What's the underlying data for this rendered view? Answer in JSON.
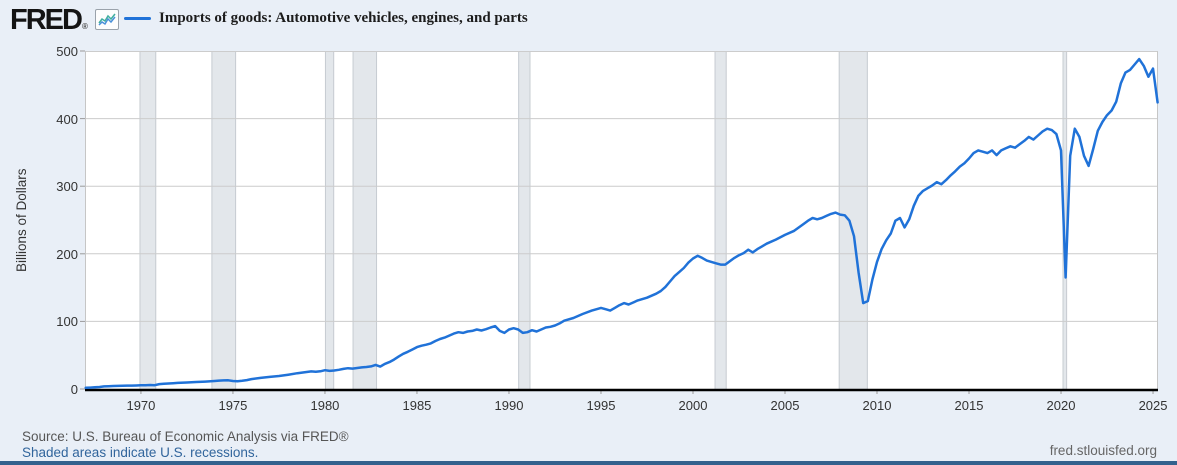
{
  "header": {
    "logo": "FRED",
    "registered_mark": "®",
    "legend_label": "Imports of goods: Automotive vehicles, engines, and parts"
  },
  "footer": {
    "source_line": "Source: U.S. Bureau of Economic Analysis via FRED®",
    "recession_note": "Shaded areas indicate U.S. recessions.",
    "site_url": "fred.stlouisfed.org"
  },
  "icons": {
    "fred_chart_icon": "sparkline-in-box"
  },
  "colors": {
    "page_bg": "#e9eff7",
    "plot_bg": "#ffffff",
    "line": "#2072d8",
    "gridline": "#cccccc",
    "plot_border": "#c6c6c6",
    "recession_fill": "#e3e7eb",
    "recession_edge": "#c7ccd2",
    "axis": "#000000",
    "link": "#31659c",
    "bottom_bar": "#33618d",
    "icon_line_teal": "#3fae9f",
    "icon_line_blue": "#4a90d9"
  },
  "chart_data": {
    "type": "line",
    "title": "Imports of goods: Automotive vehicles, engines, and parts",
    "xlabel": "",
    "ylabel": "Billions of Dollars",
    "grid": "horizontal",
    "legend_position": "top-left",
    "x_axis": {
      "min": 1966.96,
      "max": 2025.27,
      "ticks": [
        1970,
        1975,
        1980,
        1985,
        1990,
        1995,
        2000,
        2005,
        2010,
        2015,
        2020,
        2025
      ]
    },
    "y_axis": {
      "min": 0,
      "max": 500,
      "ticks": [
        0,
        100,
        200,
        300,
        400,
        500
      ]
    },
    "recessions": [
      [
        1969.92,
        1970.83
      ],
      [
        1973.83,
        1975.17
      ],
      [
        1980.0,
        1980.5
      ],
      [
        1981.5,
        1982.83
      ],
      [
        1990.5,
        1991.17
      ],
      [
        2001.17,
        2001.83
      ],
      [
        2007.92,
        2009.5
      ],
      [
        2020.08,
        2020.33
      ]
    ],
    "series": [
      {
        "name": "Imports of goods: Automotive vehicles, engines, and parts",
        "units": "Billions of Dollars",
        "points": [
          [
            1967.0,
            1.8
          ],
          [
            1967.25,
            2.1
          ],
          [
            1967.5,
            2.5
          ],
          [
            1967.75,
            3.0
          ],
          [
            1968.0,
            3.8
          ],
          [
            1968.25,
            4.2
          ],
          [
            1968.5,
            4.4
          ],
          [
            1968.75,
            4.6
          ],
          [
            1969.0,
            4.8
          ],
          [
            1969.25,
            5.0
          ],
          [
            1969.5,
            5.1
          ],
          [
            1969.75,
            5.2
          ],
          [
            1970.0,
            5.4
          ],
          [
            1970.25,
            5.6
          ],
          [
            1970.5,
            5.9
          ],
          [
            1970.75,
            5.6
          ],
          [
            1971.0,
            7.2
          ],
          [
            1971.25,
            7.8
          ],
          [
            1971.5,
            8.2
          ],
          [
            1971.75,
            8.6
          ],
          [
            1972.0,
            9.0
          ],
          [
            1972.5,
            9.6
          ],
          [
            1973.0,
            10.4
          ],
          [
            1973.5,
            11.0
          ],
          [
            1974.0,
            11.8
          ],
          [
            1974.25,
            12.5
          ],
          [
            1974.5,
            12.7
          ],
          [
            1974.75,
            12.9
          ],
          [
            1975.0,
            11.9
          ],
          [
            1975.25,
            11.5
          ],
          [
            1975.5,
            12.3
          ],
          [
            1975.75,
            13.2
          ],
          [
            1976.0,
            14.6
          ],
          [
            1976.5,
            16.4
          ],
          [
            1977.0,
            17.9
          ],
          [
            1977.5,
            19.3
          ],
          [
            1978.0,
            21.2
          ],
          [
            1978.5,
            23.3
          ],
          [
            1979.0,
            25.1
          ],
          [
            1979.25,
            26.0
          ],
          [
            1979.5,
            25.4
          ],
          [
            1979.75,
            26.2
          ],
          [
            1980.0,
            27.8
          ],
          [
            1980.25,
            26.8
          ],
          [
            1980.5,
            27.3
          ],
          [
            1980.75,
            28.4
          ],
          [
            1981.0,
            29.8
          ],
          [
            1981.25,
            30.7
          ],
          [
            1981.5,
            30.2
          ],
          [
            1981.75,
            31.0
          ],
          [
            1982.0,
            31.9
          ],
          [
            1982.25,
            32.6
          ],
          [
            1982.5,
            33.5
          ],
          [
            1982.75,
            35.6
          ],
          [
            1983.0,
            33.2
          ],
          [
            1983.25,
            37.2
          ],
          [
            1983.5,
            39.8
          ],
          [
            1983.75,
            43.5
          ],
          [
            1984.0,
            48
          ],
          [
            1984.25,
            52
          ],
          [
            1984.5,
            55
          ],
          [
            1984.75,
            58.5
          ],
          [
            1985.0,
            62
          ],
          [
            1985.25,
            64
          ],
          [
            1985.5,
            65.5
          ],
          [
            1985.75,
            67.5
          ],
          [
            1986.0,
            71
          ],
          [
            1986.25,
            74
          ],
          [
            1986.5,
            76
          ],
          [
            1986.75,
            79
          ],
          [
            1987.0,
            82
          ],
          [
            1987.25,
            84
          ],
          [
            1987.5,
            83
          ],
          [
            1987.75,
            85
          ],
          [
            1988.0,
            86
          ],
          [
            1988.25,
            88
          ],
          [
            1988.5,
            86.5
          ],
          [
            1988.75,
            88.5
          ],
          [
            1989.0,
            91
          ],
          [
            1989.25,
            93
          ],
          [
            1989.5,
            86
          ],
          [
            1989.75,
            83
          ],
          [
            1990.0,
            88
          ],
          [
            1990.25,
            90
          ],
          [
            1990.5,
            88
          ],
          [
            1990.75,
            83
          ],
          [
            1991.0,
            84
          ],
          [
            1991.25,
            87
          ],
          [
            1991.5,
            85
          ],
          [
            1991.75,
            88
          ],
          [
            1992.0,
            91
          ],
          [
            1992.25,
            92
          ],
          [
            1992.5,
            94
          ],
          [
            1992.75,
            97
          ],
          [
            1993.0,
            101
          ],
          [
            1993.5,
            105
          ],
          [
            1994.0,
            111
          ],
          [
            1994.5,
            116
          ],
          [
            1995.0,
            120
          ],
          [
            1995.25,
            118
          ],
          [
            1995.5,
            116
          ],
          [
            1995.75,
            120
          ],
          [
            1996.0,
            124
          ],
          [
            1996.25,
            127
          ],
          [
            1996.5,
            125
          ],
          [
            1996.75,
            128
          ],
          [
            1997.0,
            131
          ],
          [
            1997.5,
            135
          ],
          [
            1998.0,
            141
          ],
          [
            1998.25,
            145
          ],
          [
            1998.5,
            151
          ],
          [
            1998.75,
            159
          ],
          [
            1999.0,
            167
          ],
          [
            1999.25,
            173
          ],
          [
            1999.5,
            179
          ],
          [
            1999.75,
            187
          ],
          [
            2000.0,
            193
          ],
          [
            2000.25,
            197
          ],
          [
            2000.5,
            194
          ],
          [
            2000.75,
            190
          ],
          [
            2001.0,
            188
          ],
          [
            2001.25,
            186
          ],
          [
            2001.5,
            184
          ],
          [
            2001.75,
            184
          ],
          [
            2002.0,
            189
          ],
          [
            2002.25,
            194
          ],
          [
            2002.5,
            198
          ],
          [
            2002.75,
            201
          ],
          [
            2003.0,
            206
          ],
          [
            2003.25,
            202
          ],
          [
            2003.5,
            207
          ],
          [
            2003.75,
            211
          ],
          [
            2004.0,
            215
          ],
          [
            2004.5,
            221
          ],
          [
            2005.0,
            228
          ],
          [
            2005.5,
            234
          ],
          [
            2006.0,
            244
          ],
          [
            2006.25,
            249
          ],
          [
            2006.5,
            253
          ],
          [
            2006.75,
            251
          ],
          [
            2007.0,
            253
          ],
          [
            2007.25,
            256
          ],
          [
            2007.5,
            259
          ],
          [
            2007.75,
            261
          ],
          [
            2008.0,
            258
          ],
          [
            2008.25,
            257
          ],
          [
            2008.5,
            249
          ],
          [
            2008.75,
            226
          ],
          [
            2009.0,
            172
          ],
          [
            2009.25,
            127
          ],
          [
            2009.5,
            130
          ],
          [
            2009.75,
            162
          ],
          [
            2010.0,
            188
          ],
          [
            2010.25,
            207
          ],
          [
            2010.5,
            220
          ],
          [
            2010.75,
            230
          ],
          [
            2011.0,
            249
          ],
          [
            2011.25,
            253
          ],
          [
            2011.5,
            239
          ],
          [
            2011.75,
            251
          ],
          [
            2012.0,
            271
          ],
          [
            2012.25,
            286
          ],
          [
            2012.5,
            293
          ],
          [
            2012.75,
            297
          ],
          [
            2013.0,
            301
          ],
          [
            2013.25,
            306
          ],
          [
            2013.5,
            303
          ],
          [
            2013.75,
            309
          ],
          [
            2014.0,
            316
          ],
          [
            2014.25,
            322
          ],
          [
            2014.5,
            329
          ],
          [
            2014.75,
            334
          ],
          [
            2015.0,
            341
          ],
          [
            2015.25,
            349
          ],
          [
            2015.5,
            353
          ],
          [
            2015.75,
            351
          ],
          [
            2016.0,
            349
          ],
          [
            2016.25,
            353
          ],
          [
            2016.5,
            346
          ],
          [
            2016.75,
            353
          ],
          [
            2017.0,
            356
          ],
          [
            2017.25,
            359
          ],
          [
            2017.5,
            357
          ],
          [
            2017.75,
            362
          ],
          [
            2018.0,
            367
          ],
          [
            2018.25,
            373
          ],
          [
            2018.5,
            369
          ],
          [
            2018.75,
            375
          ],
          [
            2019.0,
            381
          ],
          [
            2019.25,
            385
          ],
          [
            2019.5,
            383
          ],
          [
            2019.75,
            377
          ],
          [
            2020.0,
            353
          ],
          [
            2020.25,
            165
          ],
          [
            2020.5,
            345
          ],
          [
            2020.75,
            385
          ],
          [
            2021.0,
            373
          ],
          [
            2021.25,
            345
          ],
          [
            2021.5,
            330
          ],
          [
            2021.75,
            355
          ],
          [
            2022.0,
            382
          ],
          [
            2022.25,
            395
          ],
          [
            2022.5,
            405
          ],
          [
            2022.75,
            412
          ],
          [
            2023.0,
            425
          ],
          [
            2023.25,
            452
          ],
          [
            2023.5,
            468
          ],
          [
            2023.75,
            472
          ],
          [
            2024.0,
            480
          ],
          [
            2024.25,
            488
          ],
          [
            2024.5,
            478
          ],
          [
            2024.75,
            462
          ],
          [
            2025.0,
            474
          ],
          [
            2025.25,
            424
          ]
        ]
      }
    ]
  }
}
